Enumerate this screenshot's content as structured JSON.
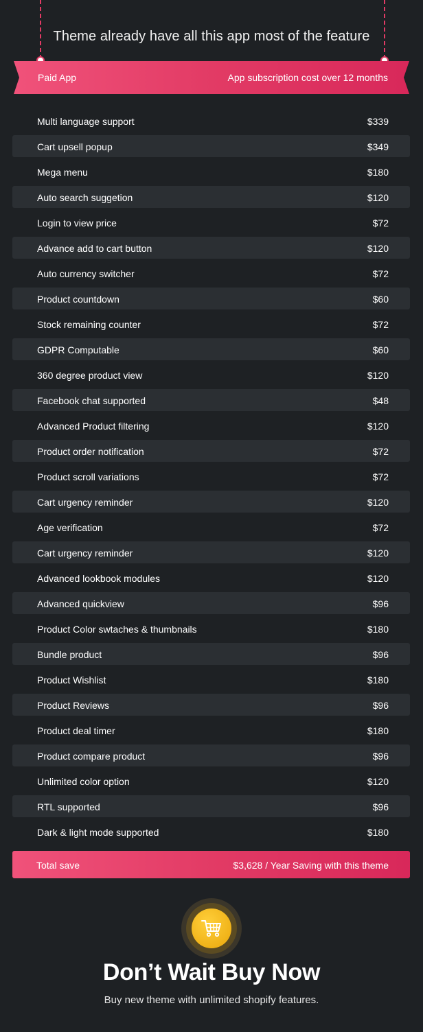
{
  "heading": "Theme already have all this app most of the feature",
  "table_header": {
    "left": "Paid App",
    "right": "App subscription cost over 12 months"
  },
  "rows": [
    {
      "feature": "Multi language support",
      "price": "$339"
    },
    {
      "feature": "Cart upsell popup",
      "price": "$349"
    },
    {
      "feature": "Mega menu",
      "price": "$180"
    },
    {
      "feature": "Auto search suggetion",
      "price": "$120"
    },
    {
      "feature": "Login to view price",
      "price": "$72"
    },
    {
      "feature": "Advance add to cart button",
      "price": "$120"
    },
    {
      "feature": "Auto currency switcher",
      "price": "$72"
    },
    {
      "feature": "Product countdown",
      "price": "$60"
    },
    {
      "feature": "Stock remaining counter",
      "price": "$72"
    },
    {
      "feature": "GDPR Computable",
      "price": "$60"
    },
    {
      "feature": "360 degree product view",
      "price": "$120"
    },
    {
      "feature": "Facebook chat supported",
      "price": "$48"
    },
    {
      "feature": "Advanced Product filtering",
      "price": "$120"
    },
    {
      "feature": "Product order notification",
      "price": "$72"
    },
    {
      "feature": "Product scroll variations",
      "price": "$72"
    },
    {
      "feature": "Cart urgency reminder",
      "price": "$120"
    },
    {
      "feature": "Age verification",
      "price": "$72"
    },
    {
      "feature": "Cart urgency reminder",
      "price": "$120"
    },
    {
      "feature": "Advanced lookbook modules",
      "price": "$120"
    },
    {
      "feature": "Advanced quickview",
      "price": "$96"
    },
    {
      "feature": "Product Color swtaches & thumbnails",
      "price": "$180"
    },
    {
      "feature": "Bundle product",
      "price": "$96"
    },
    {
      "feature": "Product Wishlist",
      "price": "$180"
    },
    {
      "feature": "Product Reviews",
      "price": "$96"
    },
    {
      "feature": "Product deal timer",
      "price": "$180"
    },
    {
      "feature": "Product compare product",
      "price": "$96"
    },
    {
      "feature": "Unlimited color option",
      "price": "$120"
    },
    {
      "feature": "RTL supported",
      "price": "$96"
    },
    {
      "feature": "Dark & light mode supported",
      "price": "$180"
    }
  ],
  "total": {
    "label": "Total save",
    "value": "$3,628 / Year Saving with this theme"
  },
  "cta": {
    "icon": "cart-icon",
    "title": "Don’t Wait Buy Now",
    "subtitle": "Buy new theme with unlimited shopify features."
  },
  "colors": {
    "accent": "#e23b65",
    "background": "#1e2124",
    "row_alt": "#2b2f33",
    "cart_gold": "#f5b819"
  }
}
